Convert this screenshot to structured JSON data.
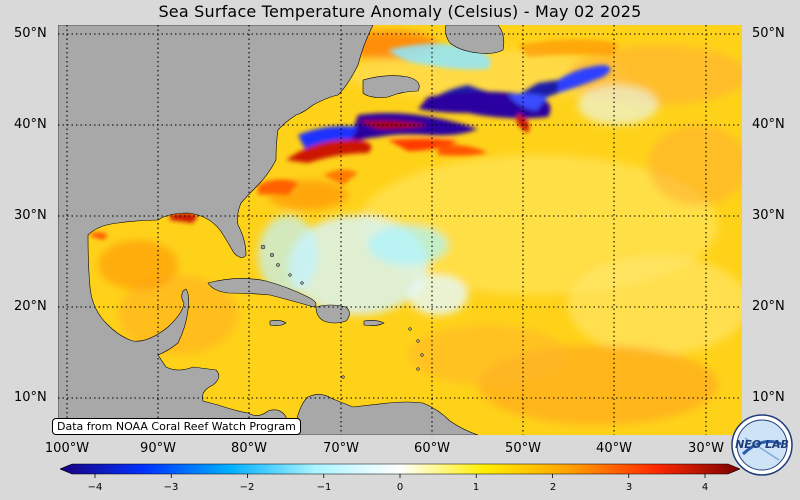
{
  "title": "Sea Surface Temperature Anomaly (Celsius) - May 02 2025",
  "latitude_labels": [
    "50°N",
    "40°N",
    "30°N",
    "20°N",
    "10°N"
  ],
  "longitude_labels": [
    "100°W",
    "90°W",
    "80°W",
    "70°W",
    "60°W",
    "50°W",
    "40°W",
    "30°W"
  ],
  "credit": "Data from NOAA Coral Reef Watch Program",
  "colorbar": {
    "ticks": [
      "−4",
      "−3",
      "−2",
      "−1",
      "0",
      "1",
      "2",
      "3",
      "4"
    ],
    "min": -4,
    "max": 4,
    "colors": [
      "#1a0080",
      "#0033ff",
      "#00b0ff",
      "#aaf4ff",
      "#ffffff",
      "#ffee00",
      "#ffa000",
      "#ff2a00",
      "#7a0000"
    ]
  },
  "colors": {
    "land": "#a8a8a8",
    "warm_anomaly": "#ffd21a",
    "cold_anomaly": "#3300a0"
  },
  "logo": {
    "label": "NEO LAB"
  }
}
